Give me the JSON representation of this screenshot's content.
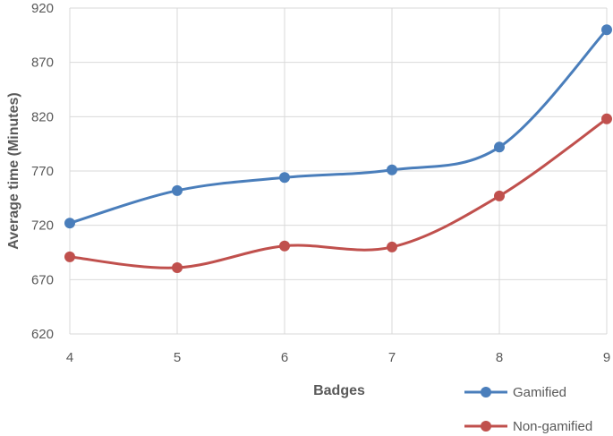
{
  "chart_data": {
    "type": "line",
    "title": "",
    "xlabel": "Badges",
    "ylabel": "Average time (Minutes)",
    "x": [
      4,
      5,
      6,
      7,
      8,
      9
    ],
    "x_ticks": [
      "4",
      "5",
      "6",
      "7",
      "8",
      "9"
    ],
    "ylim": [
      620,
      920
    ],
    "y_ticks": [
      620,
      670,
      720,
      770,
      820,
      870,
      920
    ],
    "grid": true,
    "legend_position": "bottom-right",
    "series": [
      {
        "name": "Gamified",
        "color": "#4a7ebb",
        "values": [
          722,
          752,
          764,
          771,
          792,
          900
        ]
      },
      {
        "name": "Non-gamified",
        "color": "#c0504d",
        "values": [
          691,
          681,
          701,
          700,
          747,
          818
        ]
      }
    ]
  }
}
